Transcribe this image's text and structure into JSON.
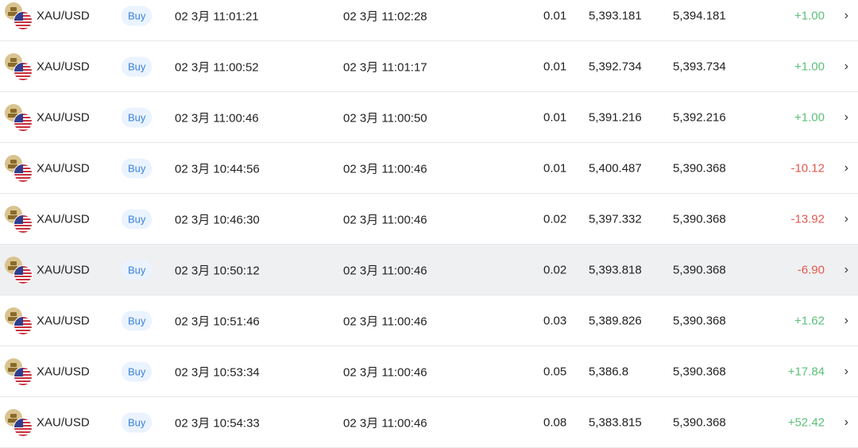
{
  "colors": {
    "profit": "#5cc07a",
    "loss": "#e05a4e",
    "side_badge": "#3b82d9",
    "highlight_row": "#eff0f2"
  },
  "highlighted_row": 5,
  "rows": [
    {
      "symbol": "XAU/USD",
      "side": "Buy",
      "open_time": "02 3月 11:01:21",
      "close_time": "02 3月 11:02:28",
      "volume": "0.01",
      "open_price": "5,393.181",
      "close_price": "5,394.181",
      "pl": "+1.00"
    },
    {
      "symbol": "XAU/USD",
      "side": "Buy",
      "open_time": "02 3月 11:00:52",
      "close_time": "02 3月 11:01:17",
      "volume": "0.01",
      "open_price": "5,392.734",
      "close_price": "5,393.734",
      "pl": "+1.00"
    },
    {
      "symbol": "XAU/USD",
      "side": "Buy",
      "open_time": "02 3月 11:00:46",
      "close_time": "02 3月 11:00:50",
      "volume": "0.01",
      "open_price": "5,391.216",
      "close_price": "5,392.216",
      "pl": "+1.00"
    },
    {
      "symbol": "XAU/USD",
      "side": "Buy",
      "open_time": "02 3月 10:44:56",
      "close_time": "02 3月 11:00:46",
      "volume": "0.01",
      "open_price": "5,400.487",
      "close_price": "5,390.368",
      "pl": "-10.12"
    },
    {
      "symbol": "XAU/USD",
      "side": "Buy",
      "open_time": "02 3月 10:46:30",
      "close_time": "02 3月 11:00:46",
      "volume": "0.02",
      "open_price": "5,397.332",
      "close_price": "5,390.368",
      "pl": "-13.92"
    },
    {
      "symbol": "XAU/USD",
      "side": "Buy",
      "open_time": "02 3月 10:50:12",
      "close_time": "02 3月 11:00:46",
      "volume": "0.02",
      "open_price": "5,393.818",
      "close_price": "5,390.368",
      "pl": "-6.90"
    },
    {
      "symbol": "XAU/USD",
      "side": "Buy",
      "open_time": "02 3月 10:51:46",
      "close_time": "02 3月 11:00:46",
      "volume": "0.03",
      "open_price": "5,389.826",
      "close_price": "5,390.368",
      "pl": "+1.62"
    },
    {
      "symbol": "XAU/USD",
      "side": "Buy",
      "open_time": "02 3月 10:53:34",
      "close_time": "02 3月 11:00:46",
      "volume": "0.05",
      "open_price": "5,386.8",
      "close_price": "5,390.368",
      "pl": "+17.84"
    },
    {
      "symbol": "XAU/USD",
      "side": "Buy",
      "open_time": "02 3月 10:54:33",
      "close_time": "02 3月 11:00:46",
      "volume": "0.08",
      "open_price": "5,383.815",
      "close_price": "5,390.368",
      "pl": "+52.42"
    }
  ],
  "icons": {
    "symbol": "gold-usd-flag-icon",
    "row_action": "chevron-right-icon",
    "chevron_glyph": "›"
  }
}
